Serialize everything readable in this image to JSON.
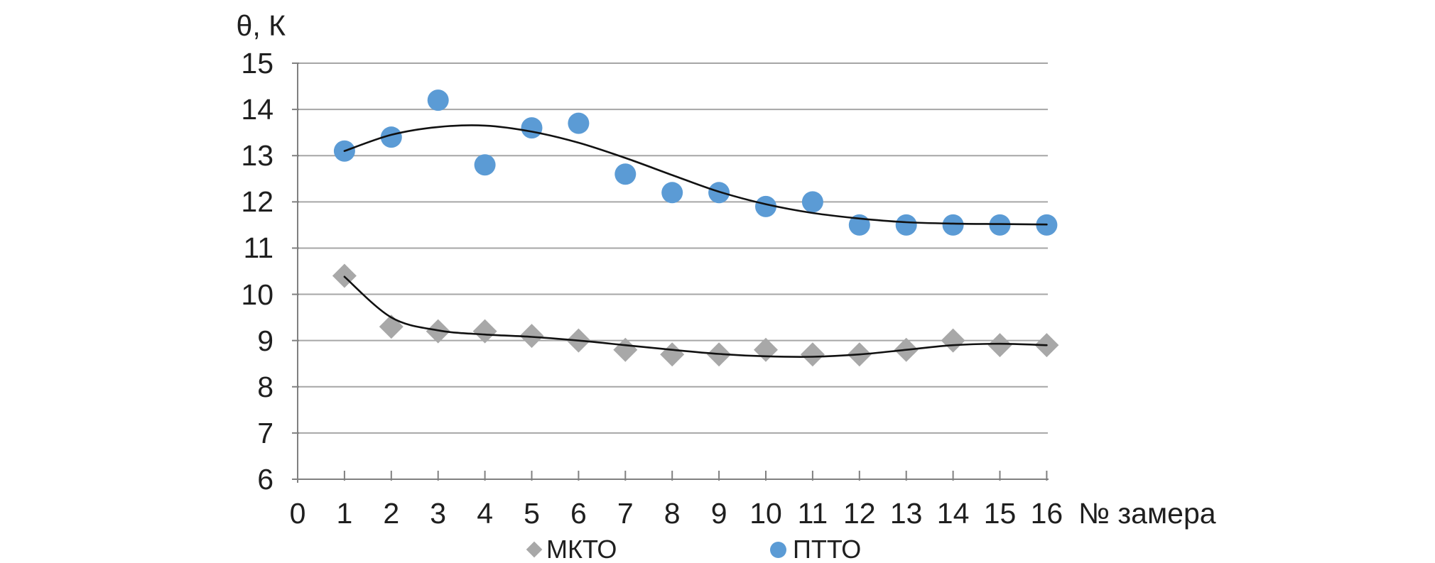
{
  "chart_data": {
    "type": "scatter",
    "title": "",
    "y_axis_title": "θ, К",
    "x_axis_title": "№ замера",
    "xlim": [
      0,
      16
    ],
    "ylim": [
      6,
      15
    ],
    "grid": "horizontal",
    "legend_position": "bottom",
    "x": [
      1,
      2,
      3,
      4,
      5,
      6,
      7,
      8,
      9,
      10,
      11,
      12,
      13,
      14,
      15,
      16
    ],
    "x_tick_labels": [
      "0",
      "1",
      "2",
      "3",
      "4",
      "5",
      "6",
      "7",
      "8",
      "9",
      "10",
      "11",
      "12",
      "13",
      "14",
      "15",
      "16"
    ],
    "y_ticks": [
      6,
      7,
      8,
      9,
      10,
      11,
      12,
      13,
      14,
      15
    ],
    "series": [
      {
        "name": "МКТО",
        "marker": "diamond",
        "color": "#A8A8A8",
        "values": [
          10.4,
          9.3,
          9.2,
          9.2,
          9.1,
          9.0,
          8.8,
          8.7,
          8.7,
          8.8,
          8.7,
          8.7,
          8.8,
          9.0,
          8.9,
          8.9
        ],
        "trendline": {
          "color": "#111111",
          "values": [
            10.38,
            9.5,
            9.22,
            9.13,
            9.08,
            9.0,
            8.9,
            8.8,
            8.71,
            8.66,
            8.65,
            8.7,
            8.8,
            8.9,
            8.93,
            8.9
          ]
        }
      },
      {
        "name": "ПТТО",
        "marker": "circle",
        "color": "#5B9BD5",
        "values": [
          13.1,
          13.4,
          14.2,
          12.8,
          13.6,
          13.7,
          12.6,
          12.2,
          12.2,
          11.9,
          12.0,
          11.5,
          11.5,
          11.5,
          11.5,
          11.5
        ],
        "trendline": {
          "color": "#111111",
          "values": [
            13.1,
            13.45,
            13.62,
            13.65,
            13.52,
            13.28,
            12.95,
            12.58,
            12.22,
            11.95,
            11.76,
            11.64,
            11.56,
            11.53,
            11.52,
            11.51
          ]
        }
      }
    ],
    "colors": {
      "gridline": "#A6A6A6",
      "axis": "#808080",
      "text": "#1F1F1F",
      "trend": "#111111",
      "background": "#FFFFFF"
    }
  }
}
